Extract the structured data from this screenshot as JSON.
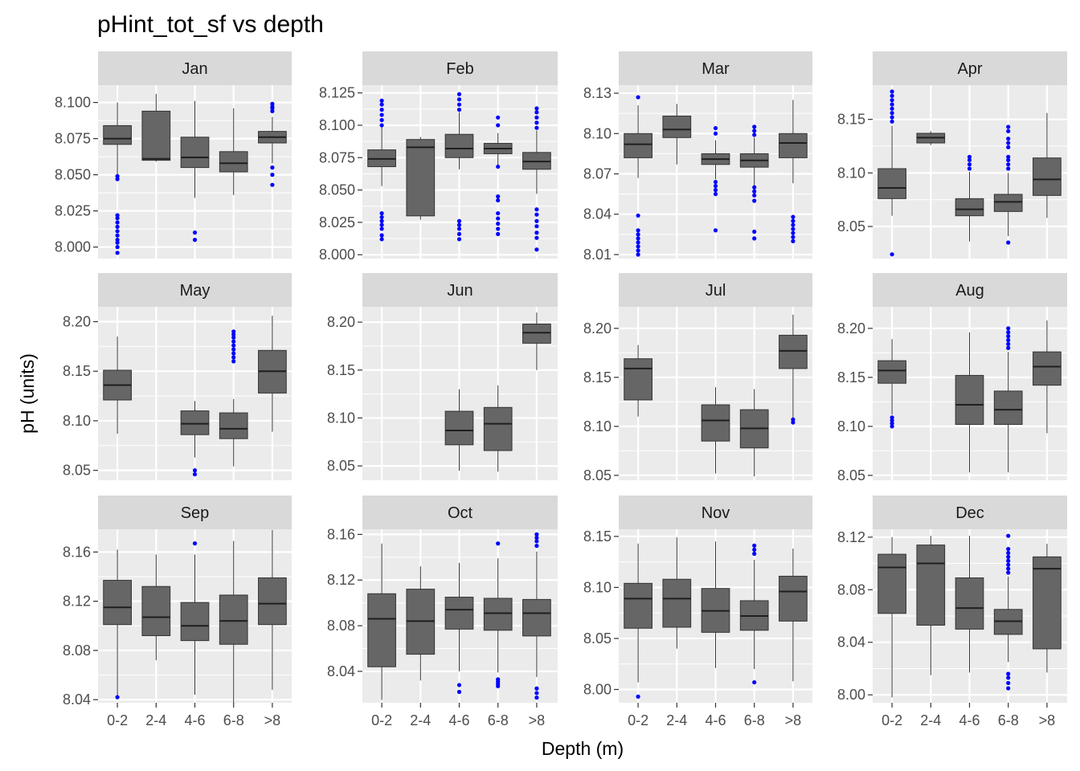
{
  "chart_data": {
    "type": "box",
    "title": "pHint_tot_sf vs depth",
    "xlabel": "Depth (m)",
    "ylabel": "pH (units)",
    "categories": [
      "0-2",
      "2-4",
      "4-6",
      "6-8",
      ">8"
    ],
    "colors": {
      "panel_bg": "#ebebeb",
      "strip_bg": "#d9d9d9",
      "box_fill": "#666666",
      "outlier": "#0000ff",
      "grid": "#ffffff"
    },
    "facets": [
      {
        "label": "Jan",
        "ylim": [
          7.992,
          8.112
        ],
        "yticks": [
          8.0,
          8.025,
          8.05,
          8.075,
          8.1
        ],
        "boxes": [
          {
            "cat": "0-2",
            "lo": 8.05,
            "q1": 8.071,
            "med": 8.075,
            "q3": 8.084,
            "hi": 8.1,
            "out": [
              8.0,
              8.003,
              8.005,
              8.008,
              8.011,
              8.014,
              8.017,
              8.02,
              8.022,
              8.047,
              8.049,
              7.996
            ]
          },
          {
            "cat": "2-4",
            "lo": 8.059,
            "q1": 8.06,
            "med": 8.061,
            "q3": 8.094,
            "hi": 8.106,
            "out": []
          },
          {
            "cat": "4-6",
            "lo": 8.034,
            "q1": 8.055,
            "med": 8.062,
            "q3": 8.076,
            "hi": 8.101,
            "out": [
              8.005,
              8.01
            ]
          },
          {
            "cat": "6-8",
            "lo": 8.036,
            "q1": 8.052,
            "med": 8.058,
            "q3": 8.066,
            "hi": 8.096,
            "out": []
          },
          {
            "cat": ">8",
            "lo": 8.058,
            "q1": 8.072,
            "med": 8.076,
            "q3": 8.08,
            "hi": 8.09,
            "out": [
              8.043,
              8.05,
              8.055,
              8.094,
              8.096,
              8.097,
              8.099
            ]
          }
        ]
      },
      {
        "label": "Feb",
        "ylim": [
          7.997,
          8.131
        ],
        "yticks": [
          8.0,
          8.025,
          8.05,
          8.075,
          8.1,
          8.125
        ],
        "boxes": [
          {
            "cat": "0-2",
            "lo": 8.053,
            "q1": 8.068,
            "med": 8.074,
            "q3": 8.081,
            "hi": 8.1,
            "out": [
              8.012,
              8.015,
              8.02,
              8.023,
              8.026,
              8.029,
              8.032,
              8.1,
              8.104,
              8.108,
              8.112,
              8.116,
              8.119
            ]
          },
          {
            "cat": "2-4",
            "lo": 8.027,
            "q1": 8.03,
            "med": 8.083,
            "q3": 8.089,
            "hi": 8.091,
            "out": []
          },
          {
            "cat": "4-6",
            "lo": 8.066,
            "q1": 8.075,
            "med": 8.082,
            "q3": 8.093,
            "hi": 8.11,
            "out": [
              8.012,
              8.016,
              8.02,
              8.023,
              8.026,
              8.112,
              8.116,
              8.12,
              8.124
            ]
          },
          {
            "cat": "6-8",
            "lo": 8.068,
            "q1": 8.078,
            "med": 8.082,
            "q3": 8.086,
            "hi": 8.094,
            "out": [
              8.016,
              8.02,
              8.024,
              8.028,
              8.032,
              8.042,
              8.045,
              8.068,
              8.1,
              8.106
            ]
          },
          {
            "cat": ">8",
            "lo": 8.047,
            "q1": 8.066,
            "med": 8.072,
            "q3": 8.079,
            "hi": 8.096,
            "out": [
              8.004,
              8.013,
              8.017,
              8.022,
              8.026,
              8.031,
              8.035,
              8.098,
              8.102,
              8.106,
              8.11,
              8.113
            ]
          }
        ]
      },
      {
        "label": "Mar",
        "ylim": [
          8.007,
          8.136
        ],
        "yticks": [
          8.01,
          8.04,
          8.07,
          8.1,
          8.13
        ],
        "boxes": [
          {
            "cat": "0-2",
            "lo": 8.067,
            "q1": 8.082,
            "med": 8.092,
            "q3": 8.1,
            "hi": 8.121,
            "out": [
              8.01,
              8.013,
              8.016,
              8.019,
              8.022,
              8.025,
              8.028,
              8.039,
              8.127
            ]
          },
          {
            "cat": "2-4",
            "lo": 8.077,
            "q1": 8.097,
            "med": 8.103,
            "q3": 8.113,
            "hi": 8.122,
            "out": []
          },
          {
            "cat": "4-6",
            "lo": 8.066,
            "q1": 8.077,
            "med": 8.081,
            "q3": 8.085,
            "hi": 8.095,
            "out": [
              8.028,
              8.055,
              8.058,
              8.061,
              8.064,
              8.1,
              8.104
            ]
          },
          {
            "cat": "6-8",
            "lo": 8.06,
            "q1": 8.075,
            "med": 8.08,
            "q3": 8.085,
            "hi": 8.097,
            "out": [
              8.022,
              8.027,
              8.05,
              8.054,
              8.057,
              8.06,
              8.099,
              8.102,
              8.105
            ]
          },
          {
            "cat": ">8",
            "lo": 8.063,
            "q1": 8.082,
            "med": 8.093,
            "q3": 8.1,
            "hi": 8.125,
            "out": [
              8.02,
              8.023,
              8.026,
              8.029,
              8.032,
              8.035,
              8.038
            ]
          }
        ]
      },
      {
        "label": "Apr",
        "ylim": [
          8.02,
          8.182
        ],
        "yticks": [
          8.05,
          8.1,
          8.15
        ],
        "boxes": [
          {
            "cat": "0-2",
            "lo": 8.06,
            "q1": 8.076,
            "med": 8.086,
            "q3": 8.104,
            "hi": 8.144,
            "out": [
              8.024,
              8.148,
              8.152,
              8.156,
              8.16,
              8.164,
              8.168,
              8.172,
              8.176
            ]
          },
          {
            "cat": "2-4",
            "lo": 8.126,
            "q1": 8.128,
            "med": 8.133,
            "q3": 8.137,
            "hi": 8.139,
            "out": []
          },
          {
            "cat": "4-6",
            "lo": 8.036,
            "q1": 8.06,
            "med": 8.066,
            "q3": 8.076,
            "hi": 8.101,
            "out": [
              8.104,
              8.108,
              8.112,
              8.115
            ]
          },
          {
            "cat": "6-8",
            "lo": 8.041,
            "q1": 8.064,
            "med": 8.073,
            "q3": 8.08,
            "hi": 8.1,
            "out": [
              8.035,
              8.104,
              8.108,
              8.112,
              8.115,
              8.124,
              8.128,
              8.132,
              8.139,
              8.143
            ]
          },
          {
            "cat": ">8",
            "lo": 8.058,
            "q1": 8.079,
            "med": 8.094,
            "q3": 8.114,
            "hi": 8.156,
            "out": []
          }
        ]
      },
      {
        "label": "May",
        "ylim": [
          8.04,
          8.215
        ],
        "yticks": [
          8.05,
          8.1,
          8.15,
          8.2
        ],
        "boxes": [
          {
            "cat": "0-2",
            "lo": 8.087,
            "q1": 8.121,
            "med": 8.136,
            "q3": 8.151,
            "hi": 8.185,
            "out": []
          },
          {
            "cat": "4-6",
            "lo": 8.063,
            "q1": 8.086,
            "med": 8.097,
            "q3": 8.11,
            "hi": 8.12,
            "out": [
              8.046,
              8.05
            ]
          },
          {
            "cat": "6-8",
            "lo": 8.054,
            "q1": 8.082,
            "med": 8.092,
            "q3": 8.108,
            "hi": 8.122,
            "out": [
              8.16,
              8.164,
              8.168,
              8.172,
              8.176,
              8.18,
              8.184,
              8.187,
              8.19
            ]
          },
          {
            "cat": ">8",
            "lo": 8.089,
            "q1": 8.128,
            "med": 8.15,
            "q3": 8.171,
            "hi": 8.206,
            "out": []
          }
        ]
      },
      {
        "label": "Jun",
        "ylim": [
          8.035,
          8.216
        ],
        "yticks": [
          8.05,
          8.1,
          8.15,
          8.2
        ],
        "boxes": [
          {
            "cat": "4-6",
            "lo": 8.045,
            "q1": 8.072,
            "med": 8.087,
            "q3": 8.107,
            "hi": 8.13,
            "out": []
          },
          {
            "cat": "6-8",
            "lo": 8.044,
            "q1": 8.066,
            "med": 8.094,
            "q3": 8.111,
            "hi": 8.134,
            "out": []
          },
          {
            "cat": ">8",
            "lo": 8.15,
            "q1": 8.178,
            "med": 8.189,
            "q3": 8.198,
            "hi": 8.21,
            "out": []
          }
        ]
      },
      {
        "label": "Jul",
        "ylim": [
          8.045,
          8.222
        ],
        "yticks": [
          8.05,
          8.1,
          8.15,
          8.2
        ],
        "boxes": [
          {
            "cat": "0-2",
            "lo": 8.11,
            "q1": 8.127,
            "med": 8.159,
            "q3": 8.169,
            "hi": 8.183,
            "out": []
          },
          {
            "cat": "4-6",
            "lo": 8.052,
            "q1": 8.085,
            "med": 8.106,
            "q3": 8.122,
            "hi": 8.14,
            "out": []
          },
          {
            "cat": "6-8",
            "lo": 8.049,
            "q1": 8.078,
            "med": 8.098,
            "q3": 8.117,
            "hi": 8.138,
            "out": []
          },
          {
            "cat": ">8",
            "lo": 8.109,
            "q1": 8.159,
            "med": 8.177,
            "q3": 8.193,
            "hi": 8.214,
            "out": [
              8.104,
              8.107
            ]
          }
        ]
      },
      {
        "label": "Aug",
        "ylim": [
          8.045,
          8.222
        ],
        "yticks": [
          8.05,
          8.1,
          8.15,
          8.2
        ],
        "boxes": [
          {
            "cat": "0-2",
            "lo": 8.112,
            "q1": 8.144,
            "med": 8.157,
            "q3": 8.167,
            "hi": 8.189,
            "out": [
              8.1,
              8.103,
              8.106,
              8.109
            ]
          },
          {
            "cat": "4-6",
            "lo": 8.053,
            "q1": 8.102,
            "med": 8.122,
            "q3": 8.152,
            "hi": 8.196,
            "out": []
          },
          {
            "cat": "6-8",
            "lo": 8.053,
            "q1": 8.102,
            "med": 8.117,
            "q3": 8.136,
            "hi": 8.176,
            "out": [
              8.18,
              8.184,
              8.188,
              8.192,
              8.196,
              8.2
            ]
          },
          {
            "cat": ">8",
            "lo": 8.093,
            "q1": 8.142,
            "med": 8.161,
            "q3": 8.176,
            "hi": 8.208,
            "out": []
          }
        ]
      },
      {
        "label": "Sep",
        "ylim": [
          8.0375,
          8.1785
        ],
        "yticks": [
          8.04,
          8.08,
          8.12,
          8.16
        ],
        "boxes": [
          {
            "cat": "0-2",
            "lo": 8.043,
            "q1": 8.101,
            "med": 8.115,
            "q3": 8.137,
            "hi": 8.162,
            "out": [
              8.042
            ]
          },
          {
            "cat": "2-4",
            "lo": 8.072,
            "q1": 8.092,
            "med": 8.107,
            "q3": 8.132,
            "hi": 8.158,
            "out": []
          },
          {
            "cat": "4-6",
            "lo": 8.044,
            "q1": 8.088,
            "med": 8.1,
            "q3": 8.119,
            "hi": 8.158,
            "out": [
              8.167
            ]
          },
          {
            "cat": "6-8",
            "lo": 8.037,
            "q1": 8.085,
            "med": 8.104,
            "q3": 8.125,
            "hi": 8.169,
            "out": []
          },
          {
            "cat": ">8",
            "lo": 8.048,
            "q1": 8.101,
            "med": 8.118,
            "q3": 8.139,
            "hi": 8.178,
            "out": []
          }
        ]
      },
      {
        "label": "Oct",
        "ylim": [
          8.0125,
          8.1645
        ],
        "yticks": [
          8.04,
          8.08,
          8.12,
          8.16
        ],
        "boxes": [
          {
            "cat": "0-2",
            "lo": 8.015,
            "q1": 8.044,
            "med": 8.086,
            "q3": 8.108,
            "hi": 8.152,
            "out": []
          },
          {
            "cat": "2-4",
            "lo": 8.032,
            "q1": 8.055,
            "med": 8.084,
            "q3": 8.112,
            "hi": 8.132,
            "out": []
          },
          {
            "cat": "4-6",
            "lo": 8.04,
            "q1": 8.077,
            "med": 8.094,
            "q3": 8.105,
            "hi": 8.135,
            "out": [
              8.022,
              8.028
            ]
          },
          {
            "cat": "6-8",
            "lo": 8.039,
            "q1": 8.076,
            "med": 8.091,
            "q3": 8.104,
            "hi": 8.139,
            "out": [
              8.027,
              8.029,
              8.031,
              8.033,
              8.152
            ]
          },
          {
            "cat": ">8",
            "lo": 8.035,
            "q1": 8.071,
            "med": 8.091,
            "q3": 8.103,
            "hi": 8.145,
            "out": [
              8.017,
              8.021,
              8.025,
              8.15,
              8.154,
              8.157,
              8.16
            ]
          }
        ]
      },
      {
        "label": "Nov",
        "ylim": [
          7.987,
          8.157
        ],
        "yticks": [
          8.0,
          8.05,
          8.1,
          8.15
        ],
        "boxes": [
          {
            "cat": "0-2",
            "lo": 8.007,
            "q1": 8.06,
            "med": 8.089,
            "q3": 8.104,
            "hi": 8.143,
            "out": [
              7.993
            ]
          },
          {
            "cat": "2-4",
            "lo": 8.04,
            "q1": 8.061,
            "med": 8.089,
            "q3": 8.108,
            "hi": 8.149,
            "out": []
          },
          {
            "cat": "4-6",
            "lo": 8.021,
            "q1": 8.056,
            "med": 8.077,
            "q3": 8.099,
            "hi": 8.145,
            "out": []
          },
          {
            "cat": "6-8",
            "lo": 8.02,
            "q1": 8.058,
            "med": 8.072,
            "q3": 8.087,
            "hi": 8.127,
            "out": [
              8.007,
              8.133,
              8.137,
              8.141
            ]
          },
          {
            "cat": ">8",
            "lo": 8.008,
            "q1": 8.067,
            "med": 8.096,
            "q3": 8.111,
            "hi": 8.138,
            "out": []
          }
        ]
      },
      {
        "label": "Dec",
        "ylim": [
          7.994,
          8.126
        ],
        "yticks": [
          8.0,
          8.04,
          8.08,
          8.12
        ],
        "boxes": [
          {
            "cat": "0-2",
            "lo": 7.998,
            "q1": 8.062,
            "med": 8.097,
            "q3": 8.107,
            "hi": 8.12,
            "out": []
          },
          {
            "cat": "2-4",
            "lo": 8.015,
            "q1": 8.053,
            "med": 8.1,
            "q3": 8.114,
            "hi": 8.121,
            "out": []
          },
          {
            "cat": "4-6",
            "lo": 8.017,
            "q1": 8.05,
            "med": 8.066,
            "q3": 8.089,
            "hi": 8.121,
            "out": []
          },
          {
            "cat": "6-8",
            "lo": 8.025,
            "q1": 8.046,
            "med": 8.056,
            "q3": 8.065,
            "hi": 8.09,
            "out": [
              8.005,
              8.009,
              8.013,
              8.016,
              8.093,
              8.096,
              8.099,
              8.102,
              8.105,
              8.108,
              8.111,
              8.121
            ]
          },
          {
            "cat": ">8",
            "lo": 8.017,
            "q1": 8.035,
            "med": 8.096,
            "q3": 8.105,
            "hi": 8.115,
            "out": []
          }
        ]
      }
    ]
  }
}
